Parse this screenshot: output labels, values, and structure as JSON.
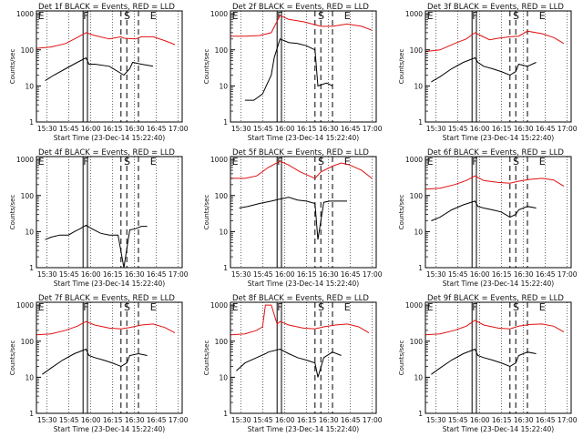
{
  "figure": {
    "colors": {
      "events": "#000000",
      "lld": "#e01010",
      "axes": "#000000",
      "background": "#ffffff"
    },
    "panels_common": {
      "ylabel": "Counts/sec",
      "xlabel": "Start Time (23-Dec-14 15:22:40)",
      "y_ticks": [
        "1",
        "10",
        "100",
        "1000"
      ],
      "x_ticks": [
        "15:30",
        "15:45",
        "16:00",
        "16:15",
        "16:30",
        "16:45",
        "17:00"
      ],
      "markers": [
        "E",
        "F",
        "S",
        "E"
      ]
    }
  },
  "chart_data": [
    {
      "type": "line",
      "title": "Det 1f BLACK = Events, RED = LLD",
      "xlabel": "Start Time (23-Dec-14 15:22:40)",
      "ylabel": "Counts/sec",
      "x_unit": "minutes since 15:22:40",
      "xlim": [
        0,
        100
      ],
      "yscale": "log",
      "ylim": [
        1,
        1200
      ],
      "grid": "vertical dotted",
      "series": [
        {
          "color": "red",
          "x": [
            0,
            10,
            20,
            28,
            34,
            40,
            50,
            58,
            60,
            68,
            72,
            80,
            88,
            95
          ],
          "y": [
            110,
            120,
            150,
            220,
            300,
            250,
            200,
            230,
            210,
            200,
            230,
            230,
            180,
            140
          ]
        },
        {
          "color": "black",
          "x": [
            6,
            12,
            20,
            28,
            34,
            36,
            40,
            50,
            60,
            64,
            66,
            72,
            80
          ],
          "y": [
            14,
            20,
            30,
            45,
            60,
            40,
            40,
            35,
            20,
            30,
            45,
            40,
            35
          ]
        }
      ]
    },
    {
      "type": "line",
      "title": "Det 2f BLACK = Events, RED = LLD",
      "xlabel": "Start Time (23-Dec-14 15:22:40)",
      "ylabel": "Counts/sec",
      "x_unit": "minutes since 15:22:40",
      "xlim": [
        0,
        100
      ],
      "yscale": "log",
      "ylim": [
        1,
        1200
      ],
      "grid": "vertical dotted",
      "series": [
        {
          "color": "red",
          "x": [
            0,
            10,
            20,
            28,
            34,
            40,
            50,
            58,
            62,
            70,
            80,
            90,
            97
          ],
          "y": [
            240,
            240,
            250,
            300,
            900,
            700,
            600,
            500,
            450,
            450,
            520,
            450,
            350
          ]
        },
        {
          "color": "black",
          "x": [
            10,
            16,
            22,
            28,
            30,
            34,
            40,
            46,
            52,
            58,
            60,
            66,
            70
          ],
          "y": [
            4,
            4,
            6,
            20,
            60,
            200,
            160,
            150,
            130,
            100,
            10,
            12,
            10
          ]
        }
      ]
    },
    {
      "type": "line",
      "title": "Det 3f BLACK = Events, RED = LLD",
      "xlabel": "Start Time (23-Dec-14 15:22:40)",
      "ylabel": "Counts/sec",
      "x_unit": "minutes since 15:22:40",
      "xlim": [
        0,
        100
      ],
      "yscale": "log",
      "ylim": [
        1,
        1200
      ],
      "grid": "vertical dotted",
      "series": [
        {
          "color": "red",
          "x": [
            0,
            10,
            20,
            28,
            34,
            38,
            44,
            50,
            58,
            64,
            70,
            80,
            88,
            95
          ],
          "y": [
            90,
            100,
            150,
            200,
            300,
            250,
            190,
            210,
            230,
            240,
            330,
            280,
            220,
            150
          ]
        },
        {
          "color": "black",
          "x": [
            4,
            10,
            18,
            26,
            34,
            36,
            40,
            46,
            52,
            58,
            62,
            64,
            70,
            76
          ],
          "y": [
            13,
            18,
            30,
            45,
            60,
            45,
            35,
            30,
            25,
            20,
            25,
            40,
            35,
            45
          ]
        }
      ]
    },
    {
      "type": "line",
      "title": "Det 4f BLACK = Events, RED = LLD",
      "xlabel": "Start Time (23-Dec-14 15:22:40)",
      "ylabel": "Counts/sec",
      "x_unit": "minutes since 15:22:40",
      "xlim": [
        0,
        100
      ],
      "yscale": "log",
      "ylim": [
        1,
        1200
      ],
      "grid": "vertical dotted",
      "series": [
        {
          "color": "black",
          "x": [
            6,
            10,
            16,
            22,
            26,
            30,
            34,
            38,
            44,
            50,
            56,
            60,
            64,
            68,
            72,
            76
          ],
          "y": [
            6,
            7,
            8,
            8,
            10,
            12,
            15,
            12,
            9,
            8,
            8,
            1,
            11,
            12,
            14,
            14
          ]
        }
      ]
    },
    {
      "type": "line",
      "title": "Det 5f BLACK = Events, RED = LLD",
      "xlabel": "Start Time (23-Dec-14 15:22:40)",
      "ylabel": "Counts/sec",
      "x_unit": "minutes since 15:22:40",
      "xlim": [
        0,
        100
      ],
      "yscale": "log",
      "ylim": [
        1,
        1200
      ],
      "grid": "vertical dotted",
      "series": [
        {
          "color": "red",
          "x": [
            0,
            10,
            18,
            26,
            34,
            40,
            48,
            58,
            62,
            70,
            76,
            82,
            90,
            97
          ],
          "y": [
            300,
            300,
            350,
            600,
            900,
            700,
            450,
            300,
            450,
            650,
            800,
            700,
            500,
            300
          ]
        },
        {
          "color": "black",
          "x": [
            6,
            12,
            20,
            28,
            34,
            40,
            46,
            52,
            58,
            60,
            64,
            68,
            72,
            80
          ],
          "y": [
            45,
            50,
            60,
            70,
            80,
            90,
            75,
            70,
            60,
            6,
            65,
            70,
            70,
            70
          ]
        }
      ]
    },
    {
      "type": "line",
      "title": "Det 6f BLACK = Events, RED = LLD",
      "xlabel": "Start Time (23-Dec-14 15:22:40)",
      "ylabel": "Counts/sec",
      "x_unit": "minutes since 15:22:40",
      "xlim": [
        0,
        100
      ],
      "yscale": "log",
      "ylim": [
        1,
        1200
      ],
      "grid": "vertical dotted",
      "series": [
        {
          "color": "red",
          "x": [
            0,
            10,
            20,
            28,
            34,
            40,
            50,
            58,
            64,
            72,
            80,
            88,
            95
          ],
          "y": [
            150,
            160,
            200,
            260,
            350,
            260,
            230,
            220,
            250,
            280,
            300,
            270,
            180
          ]
        },
        {
          "color": "black",
          "x": [
            4,
            10,
            18,
            26,
            34,
            36,
            40,
            46,
            52,
            58,
            62,
            64,
            70,
            76
          ],
          "y": [
            20,
            25,
            40,
            55,
            70,
            50,
            45,
            40,
            35,
            25,
            30,
            40,
            50,
            45
          ]
        }
      ]
    },
    {
      "type": "line",
      "title": "Det 7f BLACK = Events, RED = LLD",
      "xlabel": "Start Time (23-Dec-14 15:22:40)",
      "ylabel": "Counts/sec",
      "x_unit": "minutes since 15:22:40",
      "xlim": [
        0,
        100
      ],
      "yscale": "log",
      "ylim": [
        1,
        1200
      ],
      "grid": "vertical dotted",
      "series": [
        {
          "color": "red",
          "x": [
            0,
            10,
            20,
            28,
            34,
            40,
            50,
            58,
            64,
            72,
            80,
            88,
            95
          ],
          "y": [
            150,
            160,
            200,
            260,
            350,
            280,
            230,
            220,
            240,
            280,
            300,
            240,
            170
          ]
        },
        {
          "color": "black",
          "x": [
            4,
            10,
            18,
            26,
            34,
            36,
            40,
            46,
            52,
            58,
            62,
            64,
            70,
            76
          ],
          "y": [
            12,
            18,
            30,
            45,
            60,
            40,
            35,
            30,
            25,
            20,
            25,
            40,
            45,
            40
          ]
        }
      ]
    },
    {
      "type": "line",
      "title": "Det 8f BLACK = Events, RED = LLD",
      "xlabel": "Start Time (23-Dec-14 15:22:40)",
      "ylabel": "Counts/sec",
      "x_unit": "minutes since 15:22:40",
      "xlim": [
        0,
        100
      ],
      "yscale": "log",
      "ylim": [
        1,
        1200
      ],
      "grid": "vertical dotted",
      "series": [
        {
          "color": "red",
          "x": [
            0,
            10,
            18,
            22,
            24,
            28,
            32,
            34,
            40,
            50,
            58,
            64,
            72,
            80,
            88,
            95
          ],
          "y": [
            150,
            160,
            200,
            250,
            1000,
            1000,
            300,
            350,
            280,
            230,
            220,
            250,
            280,
            300,
            250,
            170
          ]
        },
        {
          "color": "black",
          "x": [
            4,
            10,
            18,
            24,
            26,
            34,
            40,
            46,
            52,
            58,
            60,
            64,
            70,
            76
          ],
          "y": [
            15,
            25,
            35,
            45,
            50,
            60,
            45,
            35,
            30,
            25,
            10,
            35,
            50,
            40
          ]
        }
      ]
    },
    {
      "type": "line",
      "title": "Det 9f BLACK = Events, RED = LLD",
      "xlabel": "Start Time (23-Dec-14 15:22:40)",
      "ylabel": "Counts/sec",
      "x_unit": "minutes since 15:22:40",
      "xlim": [
        0,
        100
      ],
      "yscale": "log",
      "ylim": [
        1,
        1200
      ],
      "grid": "vertical dotted",
      "series": [
        {
          "color": "red",
          "x": [
            0,
            10,
            20,
            28,
            34,
            40,
            50,
            58,
            64,
            72,
            80,
            88,
            95
          ],
          "y": [
            150,
            160,
            200,
            260,
            380,
            280,
            230,
            220,
            260,
            290,
            300,
            260,
            180
          ]
        },
        {
          "color": "black",
          "x": [
            4,
            10,
            18,
            26,
            34,
            36,
            40,
            46,
            52,
            58,
            62,
            64,
            70,
            76
          ],
          "y": [
            12,
            18,
            30,
            45,
            60,
            40,
            35,
            30,
            25,
            20,
            25,
            40,
            50,
            45
          ]
        }
      ]
    }
  ]
}
